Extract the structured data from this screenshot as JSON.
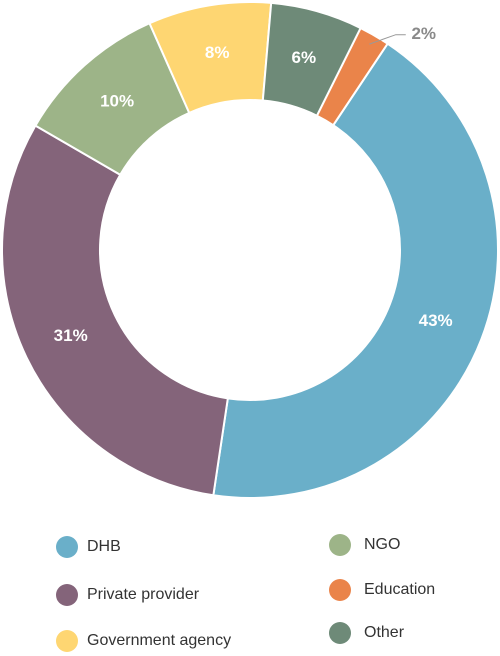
{
  "chart_data": {
    "type": "donut",
    "categories": [
      "DHB",
      "Private provider",
      "NGO",
      "Government agency",
      "Other",
      "Education"
    ],
    "values": [
      43,
      31,
      10,
      8,
      6,
      2
    ],
    "value_labels": [
      "43%",
      "31%",
      "10%",
      "8%",
      "6%",
      "2%"
    ],
    "colors": [
      "#6aafc9",
      "#84647a",
      "#9db488",
      "#fed672",
      "#6e8a78",
      "#ea844a"
    ]
  }
}
